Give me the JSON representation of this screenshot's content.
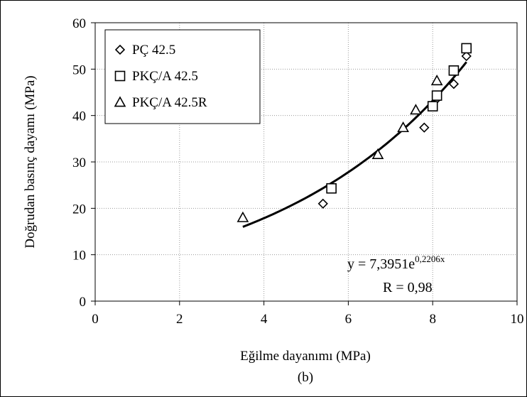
{
  "chart_data": {
    "type": "scatter",
    "xlabel": "Eğilme dayanımı (MPa)",
    "ylabel": "Doğrudan basınç dayamı (MPa)",
    "caption": "(b)",
    "xlim": [
      0,
      10
    ],
    "ylim": [
      0,
      60
    ],
    "x_ticks": [
      0,
      2,
      4,
      6,
      8,
      10
    ],
    "y_ticks": [
      0,
      10,
      20,
      30,
      40,
      50,
      60
    ],
    "grid": true,
    "legend_position": "top-left",
    "series": [
      {
        "name": "PÇ 42.5",
        "marker": "diamond",
        "points": [
          [
            5.4,
            21.0
          ],
          [
            7.8,
            37.4
          ],
          [
            8.1,
            43.6
          ],
          [
            8.5,
            46.8
          ],
          [
            8.8,
            52.8
          ]
        ]
      },
      {
        "name": "PKÇ/A 42.5",
        "marker": "square",
        "points": [
          [
            5.6,
            24.3
          ],
          [
            8.0,
            42.0
          ],
          [
            8.1,
            44.3
          ],
          [
            8.5,
            49.7
          ],
          [
            8.8,
            54.5
          ]
        ]
      },
      {
        "name": "PKÇ/A 42.5R",
        "marker": "triangle",
        "points": [
          [
            3.5,
            18.0
          ],
          [
            6.7,
            31.6
          ],
          [
            7.3,
            37.4
          ],
          [
            7.6,
            41.2
          ],
          [
            8.1,
            47.5
          ]
        ]
      }
    ],
    "trendline": {
      "type": "exponential",
      "a": 7.3951,
      "b": 0.2206,
      "x_range": [
        3.5,
        8.8
      ]
    },
    "annotations": {
      "equation_prefix": "y = 7,3951e",
      "equation_exponent": "0,2206x",
      "r_value": "R = 0,98"
    }
  }
}
